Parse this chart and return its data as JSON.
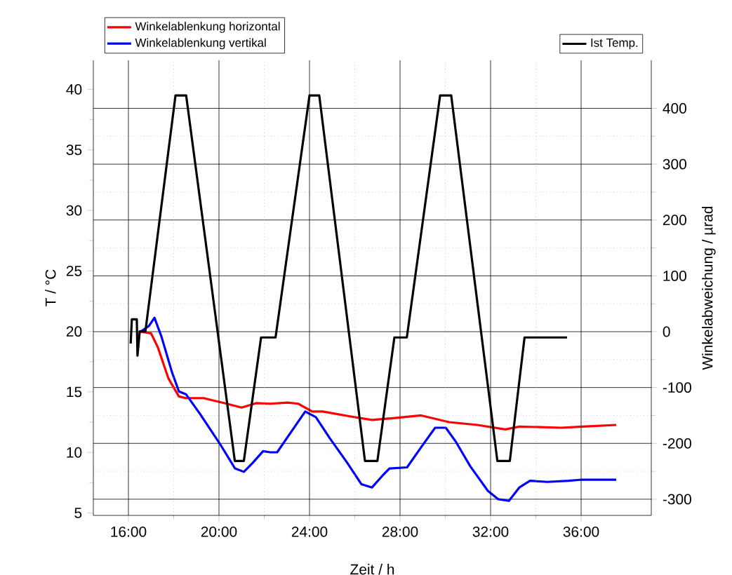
{
  "chart_data": {
    "type": "line",
    "xlabel": "Zeit / h",
    "ylabel": "T / °C",
    "y2label": "Winkelabweichung / µrad",
    "xlim": [
      14.45,
      39.1
    ],
    "xticks": [
      {
        "value": 16,
        "label": "16:00"
      },
      {
        "value": 20,
        "label": "20:00"
      },
      {
        "value": 24,
        "label": "24:00"
      },
      {
        "value": 28,
        "label": "28:00"
      },
      {
        "value": 32,
        "label": "32:00"
      },
      {
        "value": 36,
        "label": "36:00"
      }
    ],
    "ylim": [
      4.8,
      42.4
    ],
    "yticks": [
      5,
      10,
      15,
      20,
      25,
      30,
      35,
      40
    ],
    "y2lim": [
      -329,
      486
    ],
    "y2ticks": [
      -300,
      -200,
      -100,
      0,
      100,
      200,
      300,
      400
    ],
    "grid": true,
    "legend": "top",
    "marker": "none",
    "line_style": "solid",
    "series": [
      {
        "name": "Ist Temp.",
        "color": "#000000",
        "x": [
          16.1,
          16.15,
          16.37,
          16.4,
          16.5,
          16.75,
          18.08,
          18.55,
          20.7,
          21.1,
          21.86,
          22.5,
          24.0,
          24.43,
          26.45,
          27.0,
          27.75,
          28.3,
          29.77,
          30.26,
          32.3,
          32.85,
          33.5,
          35.38
        ],
        "values": [
          19,
          21,
          21,
          18,
          20,
          20,
          39.5,
          39.5,
          9.3,
          9.3,
          19.5,
          19.5,
          39.5,
          39.5,
          9.3,
          9.3,
          19.5,
          19.5,
          39.5,
          39.5,
          9.3,
          9.3,
          19.5,
          19.5
        ]
      },
      {
        "name": "Winkelablenkung horizontal",
        "color": "#ff0000",
        "axis": "y2",
        "x": [
          16.53,
          17.0,
          17.3,
          17.77,
          18.23,
          18.54,
          19.32,
          20.25,
          21.0,
          21.64,
          22.26,
          23.04,
          23.5,
          24.12,
          24.59,
          25.83,
          26.76,
          27.69,
          28.93,
          30.17,
          31.41,
          32.65,
          33.27,
          35.13,
          36.06,
          37.55
        ],
        "values": [
          0,
          -3,
          -28,
          -84,
          -116,
          -119,
          -119,
          -128,
          -136,
          -128,
          -129,
          -127,
          -129,
          -143,
          -143,
          -152,
          -158,
          -155,
          -150,
          -162,
          -167,
          -175,
          -170,
          -172,
          -170,
          -167
        ]
      },
      {
        "name": "Winkelablenkung vertikal",
        "color": "#0000ff",
        "axis": "y2",
        "x": [
          16.53,
          16.9,
          17.15,
          17.46,
          17.92,
          18.23,
          18.54,
          19.16,
          20.09,
          20.71,
          21.1,
          21.49,
          21.95,
          22.26,
          22.57,
          23.35,
          23.81,
          24.28,
          24.9,
          25.67,
          26.29,
          26.76,
          27.22,
          27.53,
          28.31,
          28.93,
          29.55,
          30.02,
          30.48,
          31.1,
          31.88,
          32.34,
          32.81,
          33.27,
          33.74,
          34.51,
          35.44,
          36.06,
          37.55
        ],
        "values": [
          0,
          10,
          25,
          -9,
          -72,
          -107,
          -112,
          -147,
          -204,
          -245,
          -251,
          -235,
          -214,
          -216,
          -216,
          -170,
          -143,
          -153,
          -191,
          -235,
          -273,
          -279,
          -258,
          -245,
          -243,
          -207,
          -172,
          -172,
          -198,
          -241,
          -285,
          -300,
          -303,
          -279,
          -267,
          -269,
          -267,
          -265,
          -265
        ]
      }
    ]
  }
}
